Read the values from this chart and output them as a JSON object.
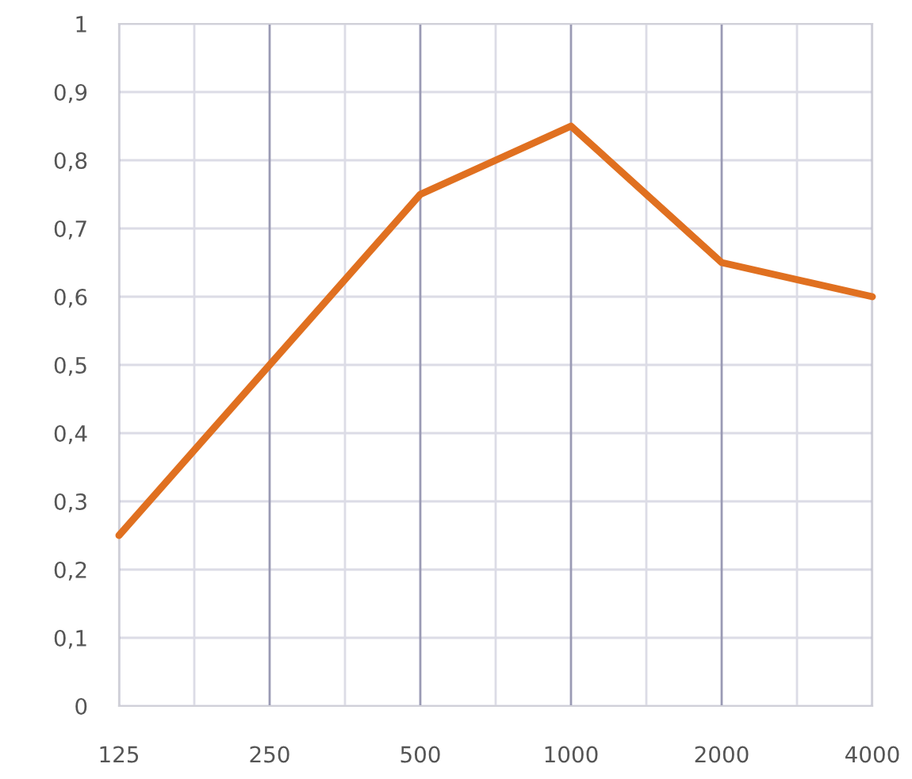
{
  "chart_data": {
    "type": "line",
    "categories": [
      "125",
      "250",
      "500",
      "1000",
      "2000",
      "4000"
    ],
    "series": [
      {
        "color": "#e07020",
        "values": [
          0.25,
          0.5,
          0.75,
          0.85,
          0.65,
          0.6
        ]
      }
    ],
    "ylim": [
      0,
      1
    ],
    "yticks": [
      0,
      {
        "value": 0.1,
        "label": "0,1"
      },
      {
        "value": 0.2,
        "label": "0,2"
      },
      {
        "value": 0.3,
        "label": "0,3"
      },
      {
        "value": 0.4,
        "label": "0,4"
      },
      {
        "value": 0.5,
        "label": "0,5"
      },
      {
        "value": 0.6,
        "label": "0,6"
      },
      {
        "value": 0.7,
        "label": "0,7"
      },
      {
        "value": 0.8,
        "label": "0,8"
      },
      {
        "value": 0.9,
        "label": "0,9"
      },
      1
    ],
    "grid": true,
    "legend": false
  }
}
